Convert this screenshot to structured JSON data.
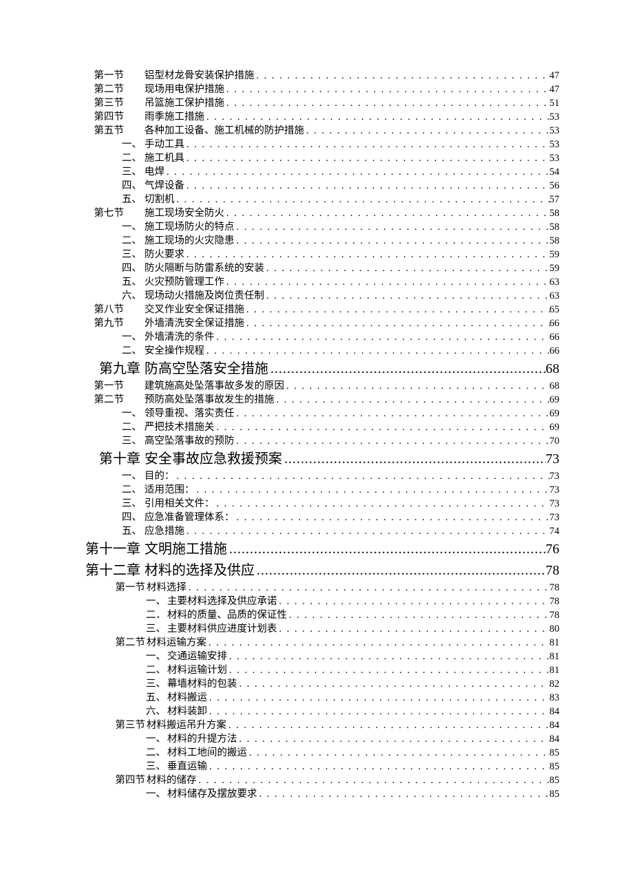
{
  "dot_char": ". . . . . . . . . . . . . . . . . . . . . . . . . . . . . . . . . . . . . . . . . . . . . . . . . . . . . . . . . . . . . . . . . . . . . . . . . . . . . . . . . . . . . . . . . . . . . . . . . . . . . .",
  "chapter_dot": "........................................................................................",
  "entries": [
    {
      "style": "A",
      "level": 1,
      "label": "第一节",
      "title": "铝型材龙骨安装保护措施",
      "page": "47"
    },
    {
      "style": "A",
      "level": 1,
      "label": "第二节",
      "title": "现场用电保护措施",
      "page": "47"
    },
    {
      "style": "A",
      "level": 1,
      "label": "第三节",
      "title": "吊篮施工保护措施",
      "page": "51"
    },
    {
      "style": "A",
      "level": 1,
      "label": "第四节",
      "title": "雨季施工措施",
      "page": "53"
    },
    {
      "style": "A",
      "level": 1,
      "label": "第五节",
      "title": "各种加工设备、施工机械的防护措施",
      "page": "53"
    },
    {
      "style": "A",
      "level": 2,
      "label": "一、",
      "title": "手动工具",
      "page": "53"
    },
    {
      "style": "A",
      "level": 2,
      "label": "二、",
      "title": "施工机具",
      "page": "53"
    },
    {
      "style": "A",
      "level": 2,
      "label": "三、",
      "title": "电焊",
      "page": "54"
    },
    {
      "style": "A",
      "level": 2,
      "label": "四、",
      "title": "气焊设备",
      "page": "56"
    },
    {
      "style": "A",
      "level": 2,
      "label": "五、",
      "title": "切割机",
      "page": "57"
    },
    {
      "style": "A",
      "level": 1,
      "label": "第七节",
      "title": "施工现场安全防火",
      "page": "58"
    },
    {
      "style": "A",
      "level": 2,
      "label": "一、",
      "title": "施工现场防火的特点",
      "page": "58"
    },
    {
      "style": "A",
      "level": 2,
      "label": "二、",
      "title": "施工现场的火灾隐患",
      "page": "58"
    },
    {
      "style": "A",
      "level": 2,
      "label": "三、",
      "title": "防火要求",
      "page": "59"
    },
    {
      "style": "A",
      "level": 2,
      "label": "四、",
      "title": "防火隔断与防雷系统的安装",
      "page": "59"
    },
    {
      "style": "A",
      "level": 2,
      "label": "五、",
      "title": "火灾预防管理工作",
      "page": "63"
    },
    {
      "style": "A",
      "level": 2,
      "label": "六、",
      "title": "现场动火措施及岗位责任制",
      "page": "63"
    },
    {
      "style": "A",
      "level": 1,
      "label": "第八节",
      "title": "交叉作业安全保证措施",
      "page": "65"
    },
    {
      "style": "A",
      "level": 1,
      "label": "第九节",
      "title": "外墙清洗安全保证措施",
      "page": "66"
    },
    {
      "style": "A",
      "level": 2,
      "label": "一、",
      "title": "外墙清洗的条件",
      "page": "66"
    },
    {
      "style": "A",
      "level": 2,
      "label": "二、",
      "title": "安全操作规程",
      "page": "66"
    },
    {
      "style": "chap",
      "level": 0,
      "label": "第九章",
      "title": "防高空坠落安全措施",
      "page": "68"
    },
    {
      "style": "A",
      "level": 1,
      "label": "第一节",
      "title": "建筑施高处坠落事故多发的原因",
      "page": "68"
    },
    {
      "style": "A",
      "level": 1,
      "label": "第二节",
      "title": "预防高处坠落事故发生的措施",
      "page": "69"
    },
    {
      "style": "A",
      "level": 2,
      "label": "一、",
      "title": "领导重视、落实责任",
      "page": "69"
    },
    {
      "style": "A",
      "level": 2,
      "label": "二、",
      "title": "严把技术措施关",
      "page": "69"
    },
    {
      "style": "A",
      "level": 2,
      "label": "三、",
      "title": "高空坠落事故的预防",
      "page": "70"
    },
    {
      "style": "chap",
      "level": 0,
      "label": "第十章",
      "title": "安全事故应急救援预案",
      "page": "73"
    },
    {
      "style": "A",
      "level": 2,
      "label": "一、",
      "title": "目的：",
      "page": "73"
    },
    {
      "style": "A",
      "level": 2,
      "label": "二、",
      "title": "适用范围：",
      "page": "73"
    },
    {
      "style": "A",
      "level": 2,
      "label": "三、",
      "title": "引用相关文件：",
      "page": "73"
    },
    {
      "style": "A",
      "level": 2,
      "label": "四、",
      "title": "应急准备管理体系：",
      "page": "73"
    },
    {
      "style": "A",
      "level": 2,
      "label": "五、",
      "title": "应急措施",
      "page": "74"
    },
    {
      "style": "chap",
      "level": 0,
      "label": "第十一章",
      "title": "文明施工措施",
      "page": "76"
    },
    {
      "style": "chap",
      "level": 0,
      "label": "第十二章",
      "title": "材料的选择及供应",
      "page": "78"
    },
    {
      "style": "B",
      "level": 1,
      "label": "第一节",
      "title": "材料选择",
      "page": "78"
    },
    {
      "style": "B",
      "level": 2,
      "label": "一、",
      "title": "主要材料选择及供应承诺",
      "page": "78"
    },
    {
      "style": "B",
      "level": 2,
      "label": "二．",
      "title": "材料的质量、品质的保证性",
      "page": "78"
    },
    {
      "style": "B",
      "level": 2,
      "label": "三、",
      "title": "主要材料供应进度计划表",
      "page": "80"
    },
    {
      "style": "B",
      "level": 1,
      "label": "第二节",
      "title": "材料运输方案",
      "page": "81"
    },
    {
      "style": "B",
      "level": 2,
      "label": "一、",
      "title": "交通运输安排",
      "page": "81"
    },
    {
      "style": "B",
      "level": 2,
      "label": "二、",
      "title": "材料运输计划",
      "page": "81"
    },
    {
      "style": "B",
      "level": 2,
      "label": "三、",
      "title": "幕墙材料的包装",
      "page": "82"
    },
    {
      "style": "B",
      "level": 2,
      "label": "五、",
      "title": "材料搬运",
      "page": "83"
    },
    {
      "style": "B",
      "level": 2,
      "label": "六、",
      "title": "材料装卸",
      "page": "84"
    },
    {
      "style": "B",
      "level": 1,
      "label": "第三节",
      "title": "材料搬运吊升方案",
      "page": "84"
    },
    {
      "style": "B",
      "level": 2,
      "label": "一、",
      "title": "材料的升提方法",
      "page": "84"
    },
    {
      "style": "B",
      "level": 2,
      "label": "二、",
      "title": "材料工地间的搬运",
      "page": "85"
    },
    {
      "style": "B",
      "level": 2,
      "label": "三、",
      "title": "垂直运输",
      "page": "85"
    },
    {
      "style": "B",
      "level": 1,
      "label": "第四节",
      "title": "材料的储存",
      "page": "85"
    },
    {
      "style": "B",
      "level": 2,
      "label": "一、",
      "title": "材料储存及摆放要求",
      "page": "85"
    }
  ]
}
